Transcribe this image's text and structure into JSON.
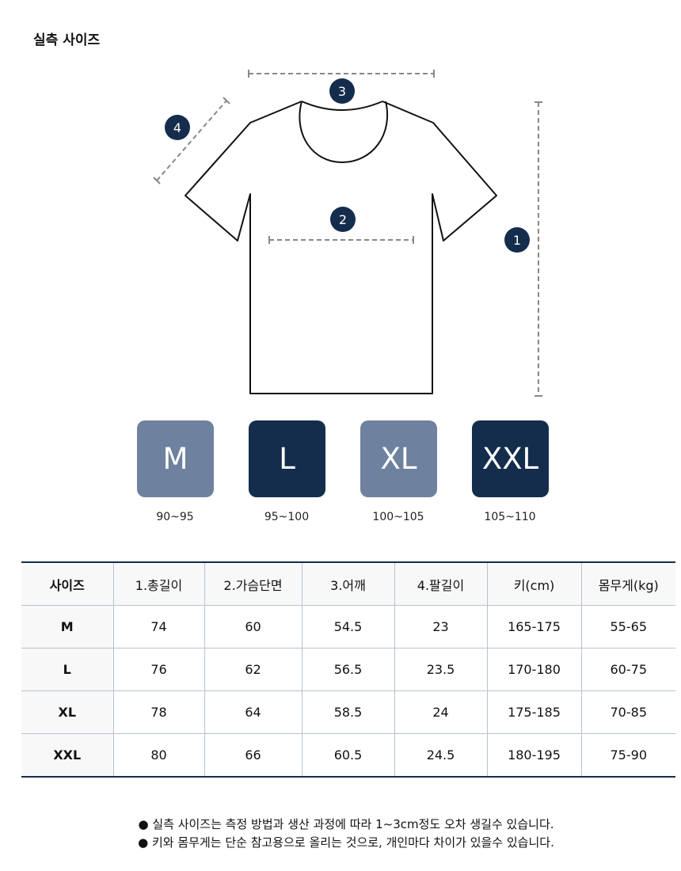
{
  "title": "실측 사이즈",
  "diagram": {
    "markers": [
      "1",
      "2",
      "3",
      "4"
    ]
  },
  "sizes": [
    {
      "label": "M",
      "range": "90~95",
      "style": "light"
    },
    {
      "label": "L",
      "range": "95~100",
      "style": "dark"
    },
    {
      "label": "XL",
      "range": "100~105",
      "style": "light"
    },
    {
      "label": "XXL",
      "range": "105~110",
      "style": "dark"
    }
  ],
  "table": {
    "header": [
      "사이즈",
      "1.총길이",
      "2.가슴단면",
      "3.어깨",
      "4.팔길이",
      "키(cm)",
      "몸무게(kg)"
    ],
    "rows": [
      [
        "M",
        "74",
        "60",
        "54.5",
        "23",
        "165-175",
        "55-65"
      ],
      [
        "L",
        "76",
        "62",
        "56.5",
        "23.5",
        "170-180",
        "60-75"
      ],
      [
        "XL",
        "78",
        "64",
        "58.5",
        "24",
        "175-185",
        "70-85"
      ],
      [
        "XXL",
        "80",
        "66",
        "60.5",
        "24.5",
        "180-195",
        "75-90"
      ]
    ]
  },
  "notes": [
    "● 실측 사이즈는 측정 방법과 생산 과정에 따라 1~3cm정도 오차 생길수 있습니다.",
    "● 키와 몸무게는 단순 참고용으로 올리는 것으로, 개인마다 차이가 있을수 있습니다."
  ]
}
